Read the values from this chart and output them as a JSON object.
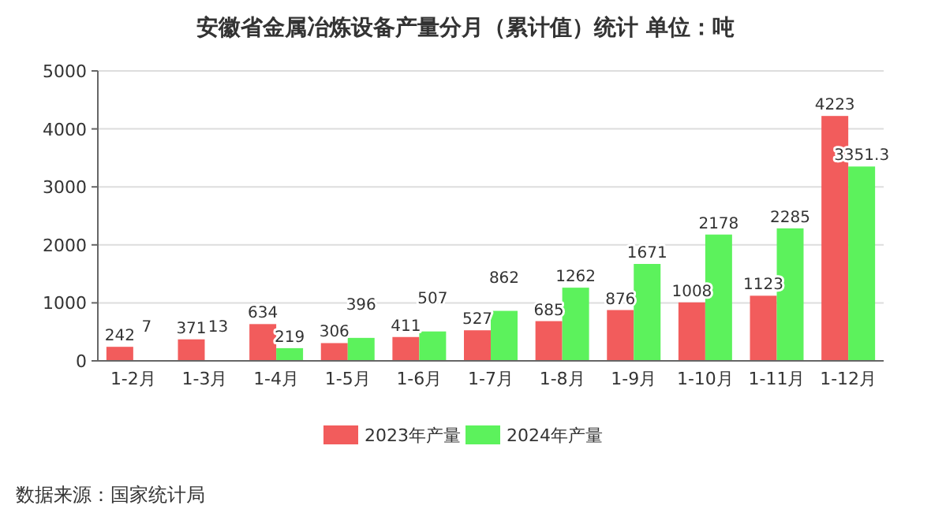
{
  "chart_data": {
    "type": "bar",
    "title": "安徽省金属冶炼设备产量分月（累计值）统计 单位：吨",
    "categories": [
      "1-2月",
      "1-3月",
      "1-4月",
      "1-5月",
      "1-6月",
      "1-7月",
      "1-8月",
      "1-9月",
      "1-10月",
      "1-11月",
      "1-12月"
    ],
    "series": [
      {
        "name": "2023年产量",
        "color": "#f25c5c",
        "values": [
          242,
          371,
          634,
          306,
          411,
          527,
          685,
          876,
          1008,
          1123,
          4223
        ]
      },
      {
        "name": "2024年产量",
        "color": "#5cf25c",
        "values": [
          7,
          13,
          219,
          396,
          507,
          862,
          1262,
          1671,
          2178,
          2285,
          3351.3
        ]
      }
    ],
    "ylim": [
      0,
      5000
    ],
    "yticks": [
      0,
      1000,
      2000,
      3000,
      4000,
      5000
    ],
    "grid": "y",
    "legend": "bottom",
    "data_labels": true,
    "annotations": [
      "数据来源：国家统计局"
    ]
  }
}
